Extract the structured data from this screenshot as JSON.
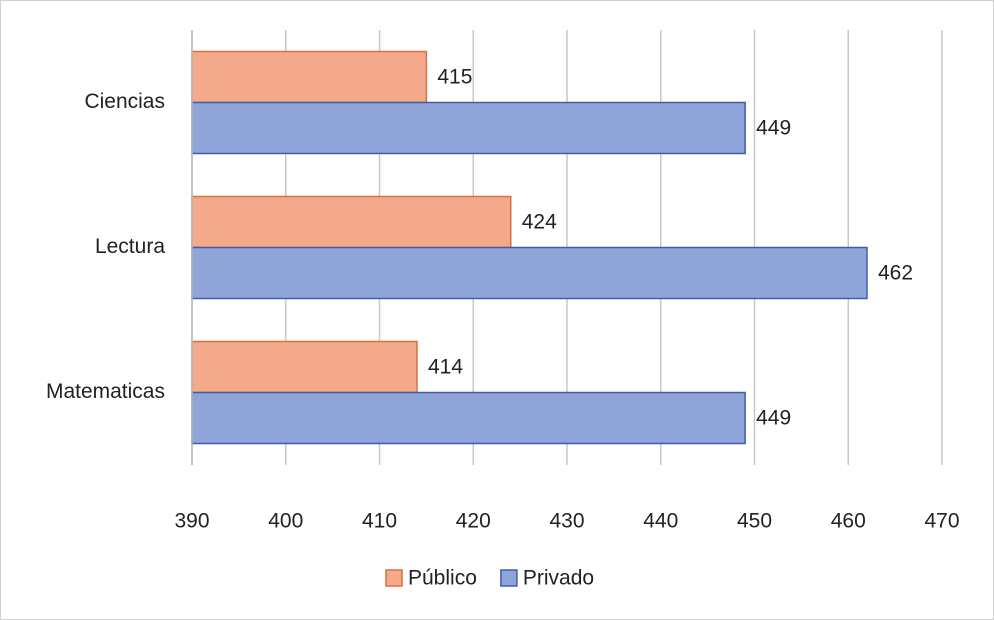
{
  "chart_data": {
    "type": "hbar",
    "categories": [
      "Ciencias",
      "Lectura",
      "Matematicas"
    ],
    "series": [
      {
        "name": "Público",
        "color": "#f4a98a",
        "values": [
          415,
          424,
          414
        ]
      },
      {
        "name": "Privado",
        "color": "#8fa5d9",
        "values": [
          449,
          462,
          449
        ]
      }
    ],
    "xlim": [
      390,
      470
    ],
    "xticks": [
      390,
      400,
      410,
      420,
      430,
      440,
      450,
      460,
      470
    ],
    "grid": true,
    "legend": "bottom"
  }
}
